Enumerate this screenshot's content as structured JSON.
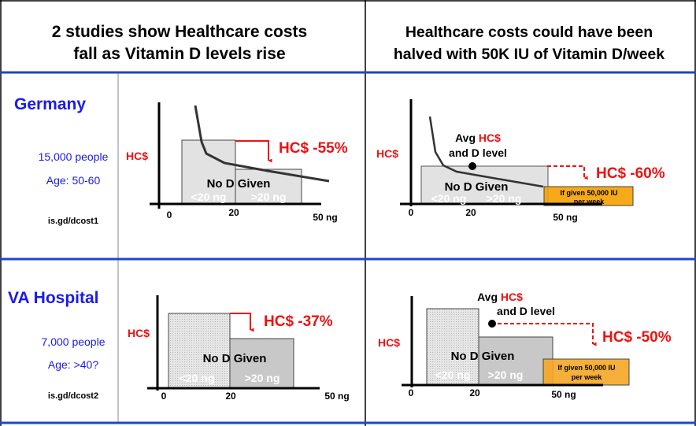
{
  "headers": {
    "left": [
      "2 studies show Healthcare costs",
      "fall as Vitamin D levels rise"
    ],
    "right": [
      "Healthcare costs could have been",
      "halved with 50K IU of Vitamin D/week"
    ]
  },
  "studies": [
    {
      "name": "Germany",
      "people": "15,000 people",
      "age": "Age: 50-60",
      "link": "is.gd/dcost1",
      "observed_change": "HC$ -55%",
      "potential_change": "HC$ -60%"
    },
    {
      "name": "VA Hospital",
      "people": "7,000 people",
      "age": "Age: >40?",
      "link": "is.gd/dcost2",
      "observed_change": "HC$ -37%",
      "potential_change": "HC$ -50%"
    }
  ],
  "chart_labels": {
    "y_axis": "HC$",
    "group": "No D Given",
    "low": "<20 ng",
    "high": ">20 ng",
    "ticks": [
      "0",
      "20",
      "50 ng"
    ],
    "avg_line1_prefix": "Avg ",
    "avg_line1_hc": "HC$",
    "avg_line2": "and D level",
    "given_line1": "If given 50,000 IU",
    "given_line2": "per week"
  },
  "colors": {
    "accent_red": "#ee1111",
    "blue_text": "#1a1aee",
    "divider_blue": "#2244cc",
    "orange": "#f5a623",
    "box_gray": "#e2e2e2"
  }
}
